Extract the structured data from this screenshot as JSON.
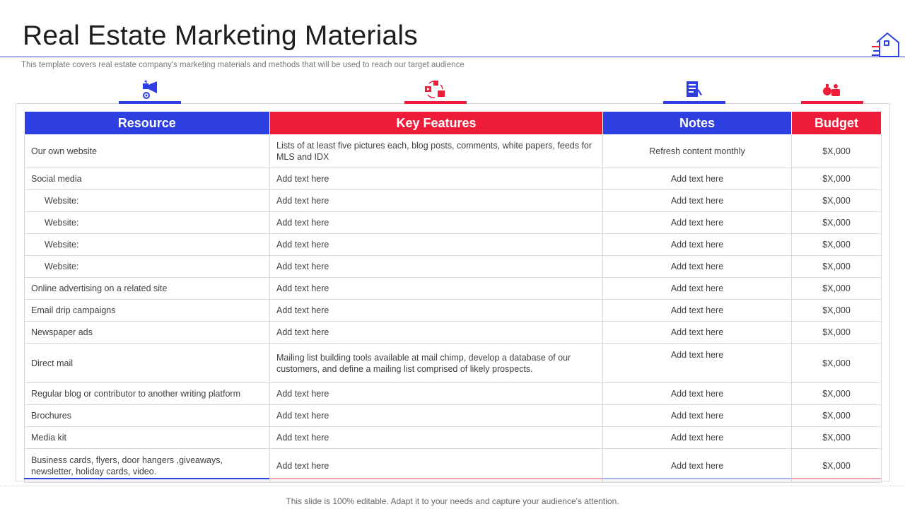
{
  "header": {
    "title": "Real Estate Marketing Materials",
    "subtitle": "This template covers real estate company's marketing materials and methods that will be used to reach our target audience"
  },
  "icons": {
    "corner": "house-icon",
    "resource": "megaphone-like-icon",
    "key_features": "cycle-icon",
    "notes": "notes-document-icon",
    "budget": "money-bag-icon"
  },
  "colors": {
    "blue": "#2d3fe0",
    "red": "#ee1c39"
  },
  "table": {
    "headers": {
      "resource": "Resource",
      "key_features": "Key Features",
      "notes": "Notes",
      "budget": "Budget"
    },
    "rows": [
      {
        "resource": "Our own website",
        "features": "Lists of at least five pictures each, blog posts, comments, white papers, feeds for MLS and IDX",
        "notes": "Refresh content monthly",
        "budget": "$X,000"
      },
      {
        "resource": "Social media",
        "features": "Add text here",
        "notes": "Add text here",
        "budget": "$X,000"
      },
      {
        "resource": "Website:",
        "features": "Add text here",
        "notes": "Add text here",
        "budget": "$X,000"
      },
      {
        "resource": "Website:",
        "features": "Add text here",
        "notes": "Add text here",
        "budget": "$X,000"
      },
      {
        "resource": "Website:",
        "features": "Add text here",
        "notes": "Add text here",
        "budget": "$X,000"
      },
      {
        "resource": "Website:",
        "features": "Add text here",
        "notes": "Add text here",
        "budget": "$X,000"
      },
      {
        "resource": "Online advertising on a related site",
        "features": "Add text here",
        "notes": "Add text here",
        "budget": "$X,000"
      },
      {
        "resource": "Email drip campaigns",
        "features": "Add text here",
        "notes": "Add text here",
        "budget": "$X,000"
      },
      {
        "resource": "Newspaper ads",
        "features": "Add text here",
        "notes": "Add text here",
        "budget": "$X,000"
      },
      {
        "resource": "Direct mail",
        "features": "Mailing list building tools available at mail chimp, develop a database of our customers, and define a mailing list comprised of likely prospects.",
        "notes": "Add text here",
        "budget": "$X,000"
      },
      {
        "resource": "Regular blog or contributor to another writing platform",
        "features": "Add text here",
        "notes": "Add text here",
        "budget": "$X,000"
      },
      {
        "resource": "Brochures",
        "features": "Add text here",
        "notes": "Add text here",
        "budget": "$X,000"
      },
      {
        "resource": "Media kit",
        "features": "Add text here",
        "notes": "Add text here",
        "budget": "$X,000"
      },
      {
        "resource": "Business cards, flyers, door hangers ,giveaways, newsletter, holiday cards, video.",
        "features": "Add text here",
        "notes": "Add text here",
        "budget": "$X,000"
      }
    ]
  },
  "footer": "This slide is 100% editable. Adapt it to your needs and capture your audience's attention."
}
